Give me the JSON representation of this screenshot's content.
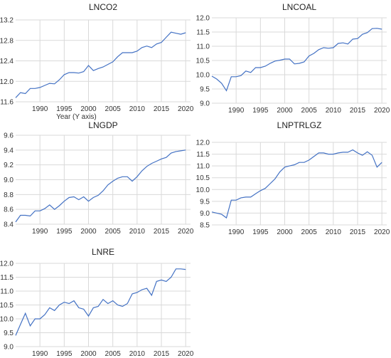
{
  "chart_data": [
    {
      "type": "line",
      "title": "LNCO2",
      "xlabel": "Year (Y axis)",
      "ylabel": "",
      "xlim": [
        1985,
        2021
      ],
      "ylim": [
        11.6,
        13.2
      ],
      "x_ticks": [
        1990,
        1995,
        2000,
        2005,
        2010,
        2015,
        2020
      ],
      "y_ticks": [
        "11.6",
        "12.0",
        "12.4",
        "12.8",
        "13.2"
      ],
      "grid": true,
      "legend": "none",
      "color": "#4472c4",
      "series": [
        {
          "x": [
            1985,
            1986,
            1987,
            1988,
            1989,
            1990,
            1991,
            1992,
            1993,
            1994,
            1995,
            1996,
            1997,
            1998,
            1999,
            2000,
            2001,
            2002,
            2003,
            2004,
            2005,
            2006,
            2007,
            2008,
            2009,
            2010,
            2011,
            2012,
            2013,
            2014,
            2015,
            2016,
            2017,
            2018,
            2019,
            2020
          ],
          "values": [
            11.68,
            11.78,
            11.76,
            11.86,
            11.86,
            11.88,
            11.92,
            11.96,
            11.95,
            12.03,
            12.13,
            12.17,
            12.17,
            12.16,
            12.19,
            12.31,
            12.21,
            12.25,
            12.28,
            12.33,
            12.38,
            12.48,
            12.56,
            12.56,
            12.56,
            12.59,
            12.66,
            12.69,
            12.66,
            12.73,
            12.76,
            12.86,
            12.96,
            12.94,
            12.92,
            12.95
          ]
        }
      ]
    },
    {
      "type": "line",
      "title": "LNCOAL",
      "xlabel": "",
      "ylabel": "",
      "xlim": [
        1985,
        2021
      ],
      "ylim": [
        9.0,
        12.0
      ],
      "x_ticks": [
        1990,
        1995,
        2000,
        2005,
        2010,
        2015,
        2020
      ],
      "y_ticks": [
        "9.0",
        "9.5",
        "10.0",
        "10.5",
        "11.0",
        "11.5",
        "12.0"
      ],
      "grid": true,
      "legend": "none",
      "color": "#4472c4",
      "series": [
        {
          "x": [
            1985,
            1986,
            1987,
            1988,
            1989,
            1990,
            1991,
            1992,
            1993,
            1994,
            1995,
            1996,
            1997,
            1998,
            1999,
            2000,
            2001,
            2002,
            2003,
            2004,
            2005,
            2006,
            2007,
            2008,
            2009,
            2010,
            2011,
            2012,
            2013,
            2014,
            2015,
            2016,
            2017,
            2018,
            2019,
            2020
          ],
          "values": [
            9.95,
            9.85,
            9.7,
            9.44,
            9.93,
            9.93,
            9.97,
            10.13,
            10.08,
            10.25,
            10.25,
            10.3,
            10.4,
            10.48,
            10.51,
            10.55,
            10.55,
            10.38,
            10.4,
            10.45,
            10.66,
            10.75,
            10.88,
            10.95,
            10.93,
            10.95,
            11.1,
            11.12,
            11.08,
            11.25,
            11.27,
            11.42,
            11.48,
            11.62,
            11.63,
            11.6
          ]
        }
      ]
    },
    {
      "type": "line",
      "title": "LNGDP",
      "xlabel": "",
      "ylabel": "",
      "xlim": [
        1985,
        2021
      ],
      "ylim": [
        8.4,
        9.6
      ],
      "x_ticks": [
        1990,
        1995,
        2000,
        2005,
        2010,
        2015,
        2020
      ],
      "y_ticks": [
        "8.4",
        "8.6",
        "8.8",
        "9.0",
        "9.2",
        "9.4",
        "9.6"
      ],
      "grid": true,
      "legend": "none",
      "color": "#4472c4",
      "series": [
        {
          "x": [
            1985,
            1986,
            1987,
            1988,
            1989,
            1990,
            1991,
            1992,
            1993,
            1994,
            1995,
            1996,
            1997,
            1998,
            1999,
            2000,
            2001,
            2002,
            2003,
            2004,
            2005,
            2006,
            2007,
            2008,
            2009,
            2010,
            2011,
            2012,
            2013,
            2014,
            2015,
            2016,
            2017,
            2018,
            2019,
            2020
          ],
          "values": [
            8.43,
            8.52,
            8.52,
            8.51,
            8.58,
            8.58,
            8.61,
            8.66,
            8.6,
            8.65,
            8.71,
            8.76,
            8.77,
            8.73,
            8.77,
            8.71,
            8.76,
            8.79,
            8.85,
            8.93,
            8.98,
            9.02,
            9.04,
            9.04,
            8.98,
            9.04,
            9.12,
            9.18,
            9.22,
            9.25,
            9.28,
            9.3,
            9.36,
            9.38,
            9.39,
            9.4
          ]
        }
      ]
    },
    {
      "type": "line",
      "title": "LNPTRLGZ",
      "xlabel": "",
      "ylabel": "",
      "xlim": [
        1985,
        2021
      ],
      "ylim": [
        8.5,
        12.0
      ],
      "x_ticks": [
        1990,
        1995,
        2000,
        2005,
        2010,
        2015,
        2020
      ],
      "y_ticks": [
        "8.5",
        "9.0",
        "9.5",
        "10.0",
        "10.5",
        "11.0",
        "11.5",
        "12.0"
      ],
      "grid": true,
      "legend": "none",
      "color": "#4472c4",
      "series": [
        {
          "x": [
            1985,
            1986,
            1987,
            1988,
            1989,
            1990,
            1991,
            1992,
            1993,
            1994,
            1995,
            1996,
            1997,
            1998,
            1999,
            2000,
            2001,
            2002,
            2003,
            2004,
            2005,
            2006,
            2007,
            2008,
            2009,
            2010,
            2011,
            2012,
            2013,
            2014,
            2015,
            2016,
            2017,
            2018,
            2019,
            2020
          ],
          "values": [
            9.05,
            9.0,
            8.95,
            8.8,
            9.55,
            9.55,
            9.65,
            9.68,
            9.68,
            9.82,
            9.95,
            10.05,
            10.25,
            10.45,
            10.75,
            10.95,
            11.0,
            11.05,
            11.15,
            11.15,
            11.25,
            11.4,
            11.55,
            11.55,
            11.5,
            11.5,
            11.55,
            11.58,
            11.58,
            11.68,
            11.55,
            11.45,
            11.6,
            11.45,
            10.95,
            11.15
          ]
        }
      ]
    },
    {
      "type": "line",
      "title": "LNRE",
      "xlabel": "",
      "ylabel": "",
      "xlim": [
        1985,
        2021
      ],
      "ylim": [
        9.0,
        12.0
      ],
      "x_ticks": [
        1990,
        1995,
        2000,
        2005,
        2010,
        2015,
        2020
      ],
      "y_ticks": [
        "9.0",
        "9.5",
        "10.0",
        "10.5",
        "11.0",
        "11.5",
        "12.0"
      ],
      "grid": true,
      "legend": "none",
      "color": "#4472c4",
      "series": [
        {
          "x": [
            1985,
            1986,
            1987,
            1988,
            1989,
            1990,
            1991,
            1992,
            1993,
            1994,
            1995,
            1996,
            1997,
            1998,
            1999,
            2000,
            2001,
            2002,
            2003,
            2004,
            2005,
            2006,
            2007,
            2008,
            2009,
            2010,
            2011,
            2012,
            2013,
            2014,
            2015,
            2016,
            2017,
            2018,
            2019,
            2020
          ],
          "values": [
            9.4,
            9.8,
            10.2,
            9.75,
            10.0,
            10.0,
            10.15,
            10.4,
            10.3,
            10.5,
            10.6,
            10.55,
            10.65,
            10.4,
            10.35,
            10.1,
            10.4,
            10.45,
            10.7,
            10.55,
            10.65,
            10.5,
            10.45,
            10.55,
            10.9,
            10.95,
            11.05,
            11.1,
            10.85,
            11.35,
            11.4,
            11.35,
            11.5,
            11.8,
            11.8,
            11.78
          ]
        }
      ]
    }
  ]
}
